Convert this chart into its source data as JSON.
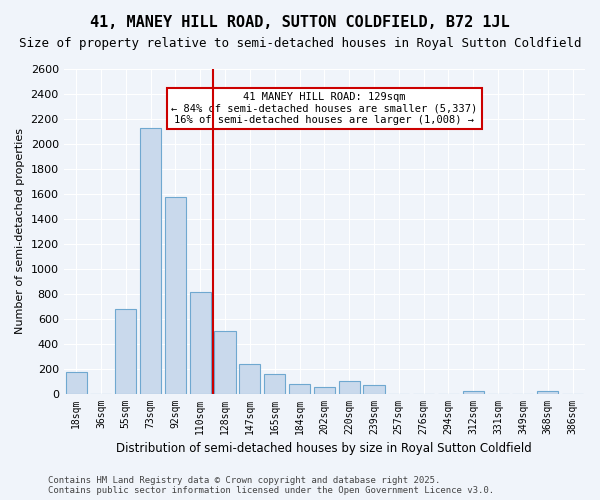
{
  "title": "41, MANEY HILL ROAD, SUTTON COLDFIELD, B72 1JL",
  "subtitle": "Size of property relative to semi-detached houses in Royal Sutton Coldfield",
  "xlabel": "Distribution of semi-detached houses by size in Royal Sutton Coldfield",
  "ylabel": "Number of semi-detached properties",
  "categories": [
    "18sqm",
    "36sqm",
    "55sqm",
    "73sqm",
    "92sqm",
    "110sqm",
    "128sqm",
    "147sqm",
    "165sqm",
    "184sqm",
    "202sqm",
    "220sqm",
    "239sqm",
    "257sqm",
    "276sqm",
    "294sqm",
    "312sqm",
    "331sqm",
    "349sqm",
    "368sqm",
    "386sqm"
  ],
  "values": [
    175,
    0,
    680,
    2125,
    1575,
    810,
    500,
    240,
    160,
    80,
    50,
    100,
    70,
    0,
    0,
    0,
    20,
    0,
    0,
    20,
    0
  ],
  "bar_color": "#c9d9ec",
  "bar_edgecolor": "#6fa8d0",
  "vline_x": 6,
  "vline_color": "#cc0000",
  "annotation_text": "41 MANEY HILL ROAD: 129sqm\n← 84% of semi-detached houses are smaller (5,337)\n16% of semi-detached houses are larger (1,008) →",
  "annotation_box_edgecolor": "#cc0000",
  "annotation_box_facecolor": "#ffffff",
  "ylim": [
    0,
    2600
  ],
  "yticks": [
    0,
    200,
    400,
    600,
    800,
    1000,
    1200,
    1400,
    1600,
    1800,
    2000,
    2200,
    2400,
    2600
  ],
  "footer_text": "Contains HM Land Registry data © Crown copyright and database right 2025.\nContains public sector information licensed under the Open Government Licence v3.0.",
  "bg_color": "#f0f4fa",
  "plot_bg_color": "#f0f4fa",
  "title_fontsize": 11,
  "subtitle_fontsize": 9,
  "annotation_fontsize": 7.5,
  "footer_fontsize": 6.5
}
